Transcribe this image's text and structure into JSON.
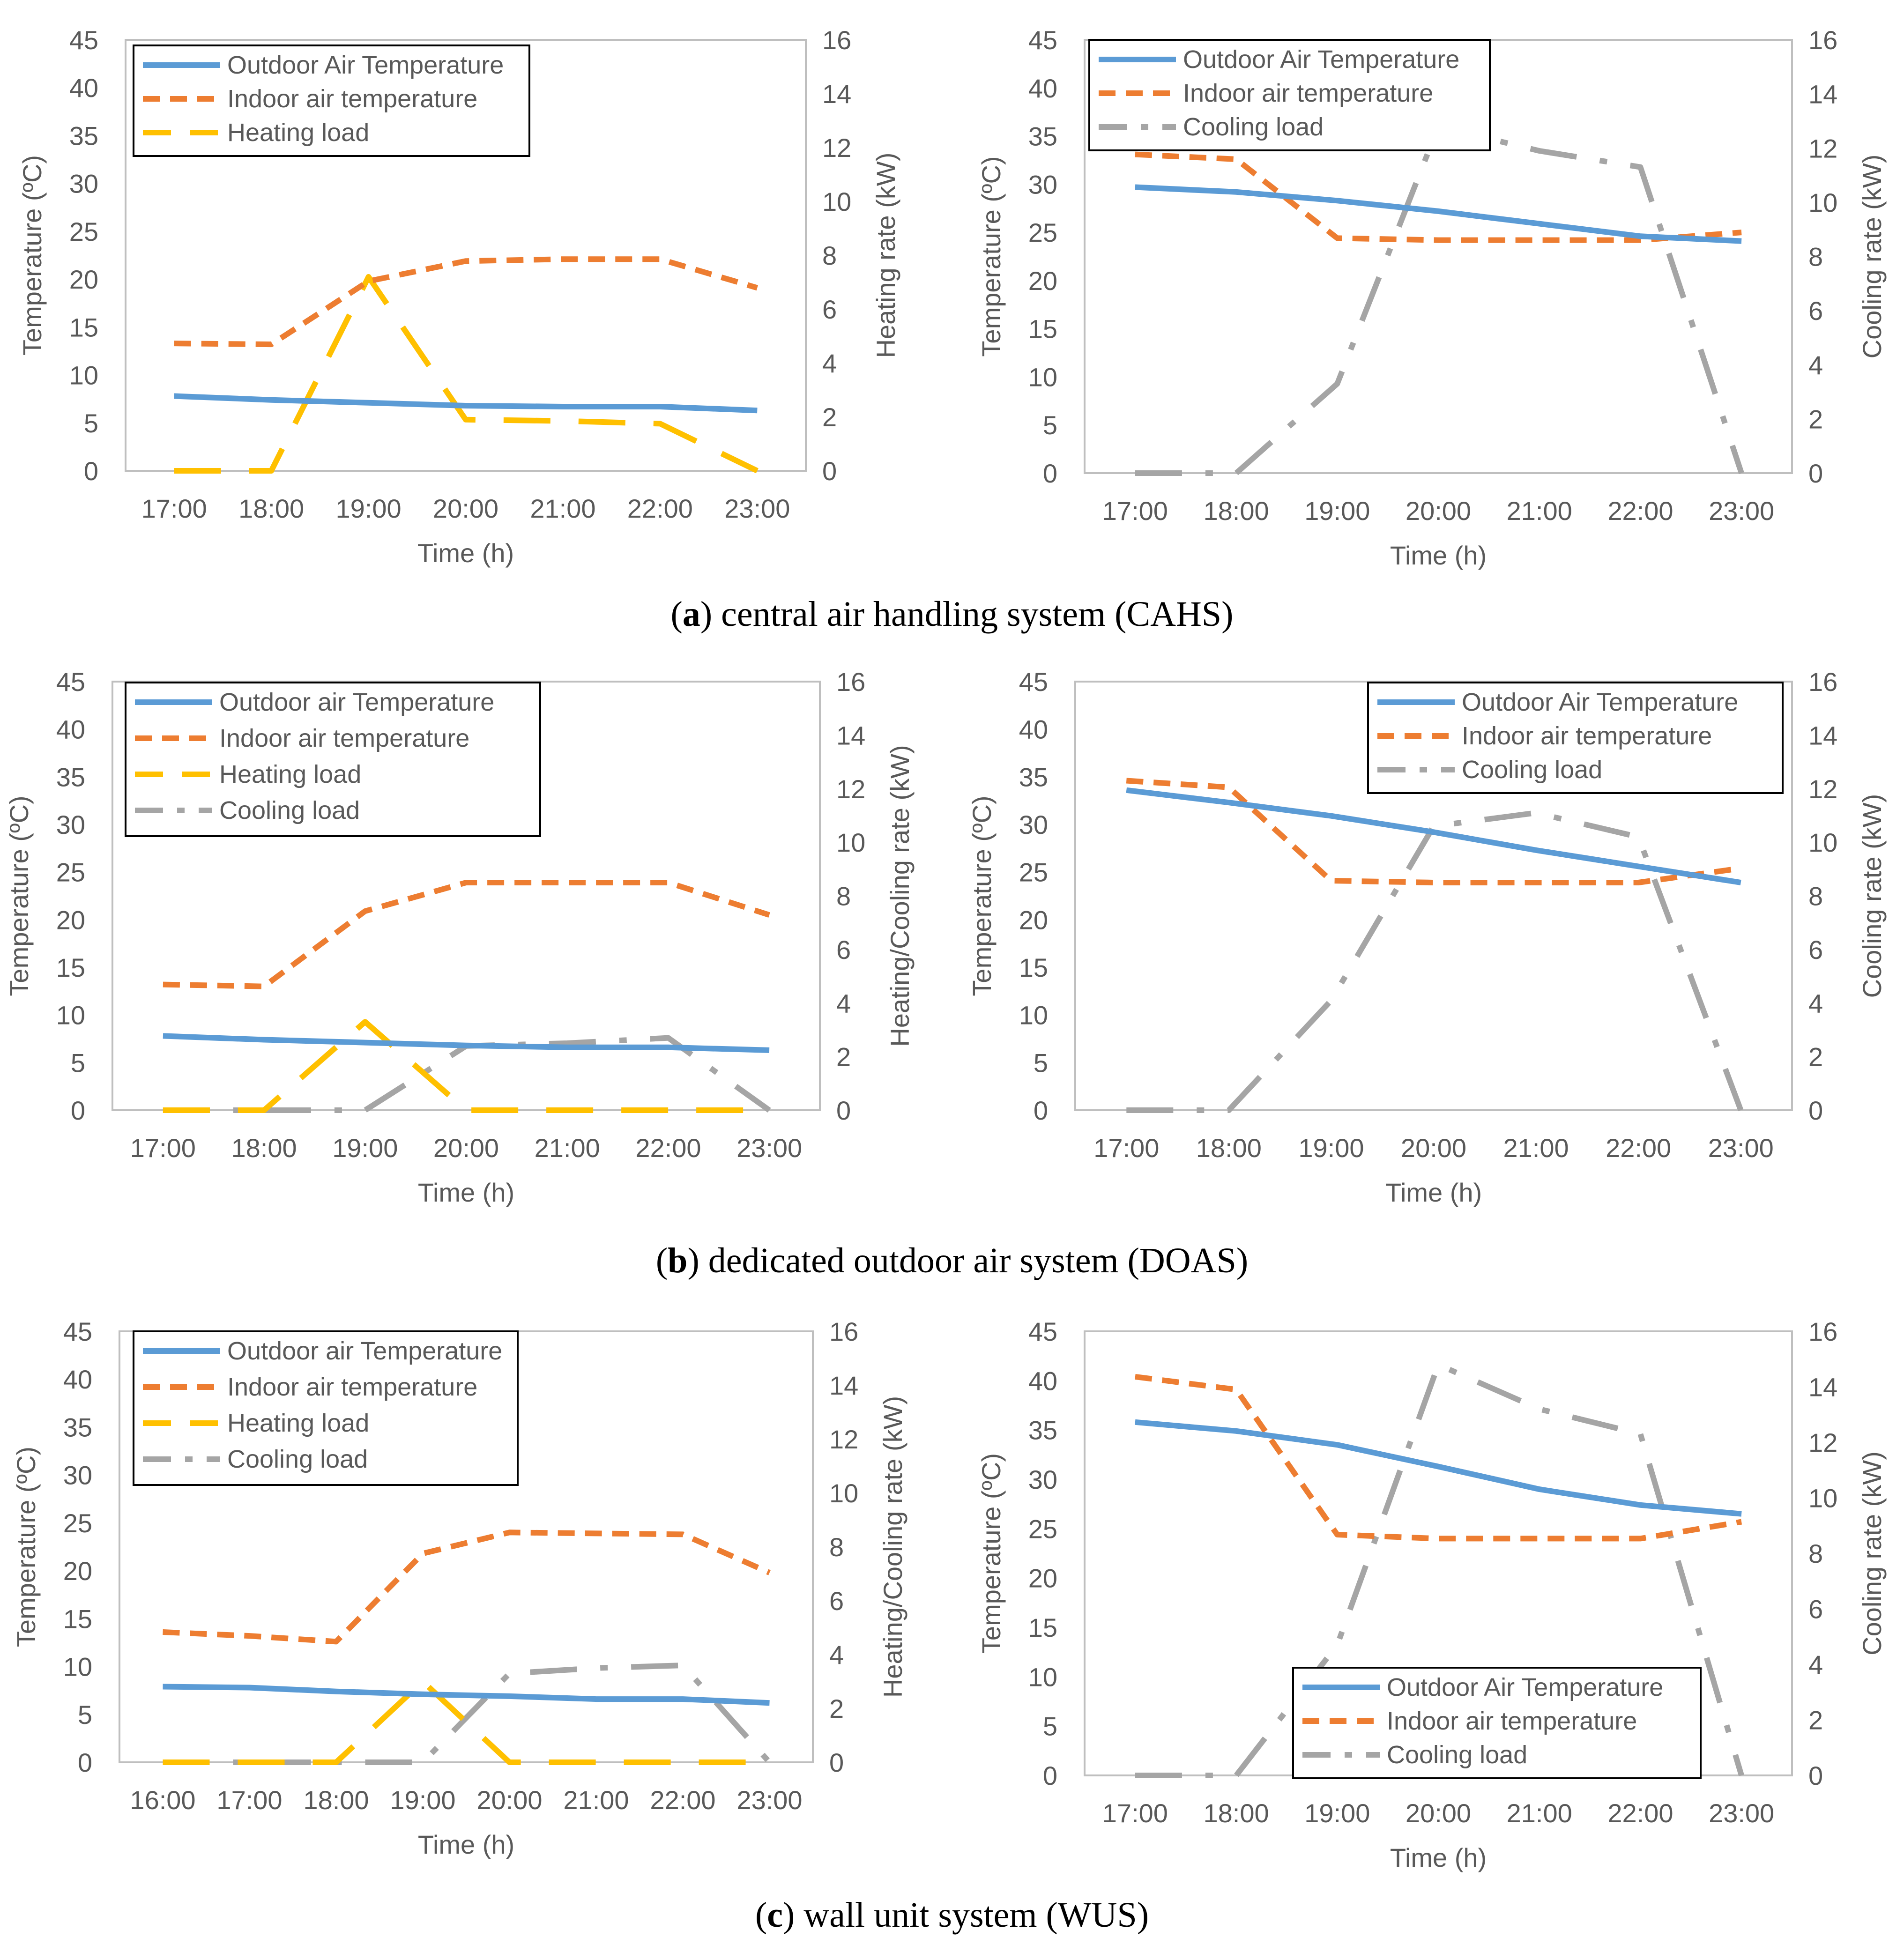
{
  "colors": {
    "outdoor": "#5B9BD5",
    "indoor": "#ED7D31",
    "heating": "#FFC000",
    "cooling": "#A5A5A5",
    "axis": "#BFBFBF",
    "text": "#595959"
  },
  "captions": [
    {
      "letter": "a",
      "text": ") central air handling system (CAHS)",
      "open": "("
    },
    {
      "letter": "b",
      "text": ") dedicated outdoor air system (DOAS)",
      "open": "("
    },
    {
      "letter": "c",
      "text": ") wall unit system (WUS)",
      "open": "("
    }
  ],
  "chart_data": [
    {
      "id": "a-left",
      "type": "line",
      "title": "",
      "xlabel": "Time (h)",
      "ylabel": "Temperature (ºC)",
      "y2label": "Heating rate (kW)",
      "categories": [
        "17:00",
        "18:00",
        "19:00",
        "20:00",
        "21:00",
        "22:00",
        "23:00"
      ],
      "ylim": [
        0,
        45
      ],
      "yticks": [
        0,
        5,
        10,
        15,
        20,
        25,
        30,
        35,
        40,
        45
      ],
      "y2lim": [
        0,
        16
      ],
      "y2ticks": [
        0,
        2,
        4,
        6,
        8,
        10,
        12,
        14,
        16
      ],
      "legend_position": "top-left",
      "series": [
        {
          "name": "Outdoor Air Temperature",
          "axis": "left",
          "style": "outdoor",
          "values": [
            7.8,
            7.4,
            7.1,
            6.8,
            6.7,
            6.7,
            6.3
          ]
        },
        {
          "name": "Indoor air temperature",
          "axis": "left",
          "style": "indoor",
          "values": [
            13.3,
            13.2,
            19.8,
            21.9,
            22.1,
            22.1,
            19.1
          ]
        },
        {
          "name": "Heating load",
          "axis": "right",
          "style": "heating",
          "values": [
            0,
            0,
            7.2,
            1.9,
            1.85,
            1.75,
            0
          ]
        }
      ]
    },
    {
      "id": "a-right",
      "type": "line",
      "title": "",
      "xlabel": "Time (h)",
      "ylabel": "Temperature (ºC)",
      "y2label": "Cooling rate (kW)",
      "categories": [
        "17:00",
        "18:00",
        "19:00",
        "20:00",
        "21:00",
        "22:00",
        "23:00"
      ],
      "ylim": [
        0,
        45
      ],
      "yticks": [
        0,
        5,
        10,
        15,
        20,
        25,
        30,
        35,
        40,
        45
      ],
      "y2lim": [
        0,
        16
      ],
      "y2ticks": [
        0,
        2,
        4,
        6,
        8,
        10,
        12,
        14,
        16
      ],
      "legend_position": "top-left",
      "series": [
        {
          "name": "Outdoor Air Temperature",
          "axis": "left",
          "style": "outdoor",
          "values": [
            29.7,
            29.2,
            28.3,
            27.2,
            25.9,
            24.6,
            24.1
          ]
        },
        {
          "name": "Indoor air temperature",
          "axis": "left",
          "style": "indoor",
          "values": [
            33.1,
            32.6,
            24.4,
            24.2,
            24.2,
            24.2,
            25.0
          ]
        },
        {
          "name": "Cooling load",
          "axis": "right",
          "style": "cooling",
          "values": [
            0,
            0,
            3.3,
            12.8,
            11.9,
            11.3,
            0
          ]
        }
      ]
    },
    {
      "id": "b-left",
      "type": "line",
      "title": "",
      "xlabel": "Time (h)",
      "ylabel": "Temperature (ºC)",
      "y2label": "Heating/Cooling rate (kW)",
      "categories": [
        "17:00",
        "18:00",
        "19:00",
        "20:00",
        "21:00",
        "22:00",
        "23:00"
      ],
      "ylim": [
        0,
        45
      ],
      "yticks": [
        0,
        5,
        10,
        15,
        20,
        25,
        30,
        35,
        40,
        45
      ],
      "y2lim": [
        0,
        16
      ],
      "y2ticks": [
        0,
        2,
        4,
        6,
        8,
        10,
        12,
        14,
        16
      ],
      "legend_position": "top-left",
      "series": [
        {
          "name": "Outdoor air Temperature",
          "axis": "left",
          "style": "outdoor",
          "values": [
            7.8,
            7.4,
            7.1,
            6.8,
            6.6,
            6.6,
            6.3
          ]
        },
        {
          "name": "Indoor air temperature",
          "axis": "left",
          "style": "indoor",
          "values": [
            13.2,
            13.0,
            20.9,
            23.9,
            23.9,
            23.9,
            20.5
          ]
        },
        {
          "name": "Heating load",
          "axis": "right",
          "style": "heating",
          "values": [
            0,
            0,
            3.3,
            0,
            0,
            0,
            0
          ]
        },
        {
          "name": "Cooling load",
          "axis": "right",
          "style": "cooling",
          "values": [
            0,
            0,
            0,
            2.4,
            2.5,
            2.7,
            0
          ]
        }
      ]
    },
    {
      "id": "b-right",
      "type": "line",
      "title": "",
      "xlabel": "Time (h)",
      "ylabel": "Temperature (ºC)",
      "y2label": "Cooling rate (kW)",
      "categories": [
        "17:00",
        "18:00",
        "19:00",
        "20:00",
        "21:00",
        "22:00",
        "23:00"
      ],
      "ylim": [
        0,
        45
      ],
      "yticks": [
        0,
        5,
        10,
        15,
        20,
        25,
        30,
        35,
        40,
        45
      ],
      "y2lim": [
        0,
        16
      ],
      "y2ticks": [
        0,
        2,
        4,
        6,
        8,
        10,
        12,
        14,
        16
      ],
      "legend_position": "top-right",
      "series": [
        {
          "name": "Outdoor Air Temperature",
          "axis": "left",
          "style": "outdoor",
          "values": [
            33.6,
            32.3,
            30.9,
            29.2,
            27.3,
            25.6,
            23.9
          ]
        },
        {
          "name": "Indoor air temperature",
          "axis": "left",
          "style": "indoor",
          "values": [
            34.6,
            33.9,
            24.1,
            23.9,
            23.9,
            23.9,
            25.4
          ]
        },
        {
          "name": "Cooling load",
          "axis": "right",
          "style": "cooling",
          "values": [
            0,
            0,
            4.1,
            10.6,
            11.1,
            10.2,
            0
          ]
        }
      ]
    },
    {
      "id": "c-left",
      "type": "line",
      "title": "",
      "xlabel": "Time (h)",
      "ylabel": "Temperature (ºC)",
      "y2label": "Heating/Cooling rate (kW)",
      "categories": [
        "16:00",
        "17:00",
        "18:00",
        "19:00",
        "20:00",
        "21:00",
        "22:00",
        "23:00"
      ],
      "ylim": [
        0,
        45
      ],
      "yticks": [
        0,
        5,
        10,
        15,
        20,
        25,
        30,
        35,
        40,
        45
      ],
      "y2lim": [
        0,
        16
      ],
      "y2ticks": [
        0,
        2,
        4,
        6,
        8,
        10,
        12,
        14,
        16
      ],
      "legend_position": "top-left",
      "series": [
        {
          "name": "Outdoor air Temperature",
          "axis": "left",
          "style": "outdoor",
          "values": [
            7.9,
            7.8,
            7.4,
            7.1,
            6.9,
            6.6,
            6.6,
            6.2
          ]
        },
        {
          "name": "Indoor air temperature",
          "axis": "left",
          "style": "indoor",
          "values": [
            13.6,
            13.2,
            12.6,
            21.8,
            24.0,
            23.9,
            23.8,
            19.8
          ]
        },
        {
          "name": "Heating load",
          "axis": "right",
          "style": "heating",
          "values": [
            0,
            0,
            0,
            3.0,
            0,
            0,
            0,
            0
          ]
        },
        {
          "name": "Cooling load",
          "axis": "right",
          "style": "cooling",
          "values": [
            0,
            0,
            0,
            0,
            3.3,
            3.5,
            3.6,
            0
          ]
        }
      ]
    },
    {
      "id": "c-right",
      "type": "line",
      "title": "",
      "xlabel": "Time (h)",
      "ylabel": "Temperature (ºC)",
      "y2label": "Cooling rate (kW)",
      "categories": [
        "17:00",
        "18:00",
        "19:00",
        "20:00",
        "21:00",
        "22:00",
        "23:00"
      ],
      "ylim": [
        0,
        45
      ],
      "yticks": [
        0,
        5,
        10,
        15,
        20,
        25,
        30,
        35,
        40,
        45
      ],
      "y2lim": [
        0,
        16
      ],
      "y2ticks": [
        0,
        2,
        4,
        6,
        8,
        10,
        12,
        14,
        16
      ],
      "legend_position": "bottom-right",
      "series": [
        {
          "name": "Outdoor Air Temperature",
          "axis": "left",
          "style": "outdoor",
          "values": [
            35.8,
            34.9,
            33.5,
            31.3,
            29.0,
            27.4,
            26.5
          ]
        },
        {
          "name": "Indoor air temperature",
          "axis": "left",
          "style": "indoor",
          "values": [
            40.4,
            39.1,
            24.4,
            24.0,
            24.0,
            24.0,
            25.7
          ]
        },
        {
          "name": "Cooling load",
          "axis": "right",
          "style": "cooling",
          "values": [
            0,
            0,
            4.7,
            14.8,
            13.2,
            12.3,
            0
          ]
        }
      ]
    }
  ]
}
